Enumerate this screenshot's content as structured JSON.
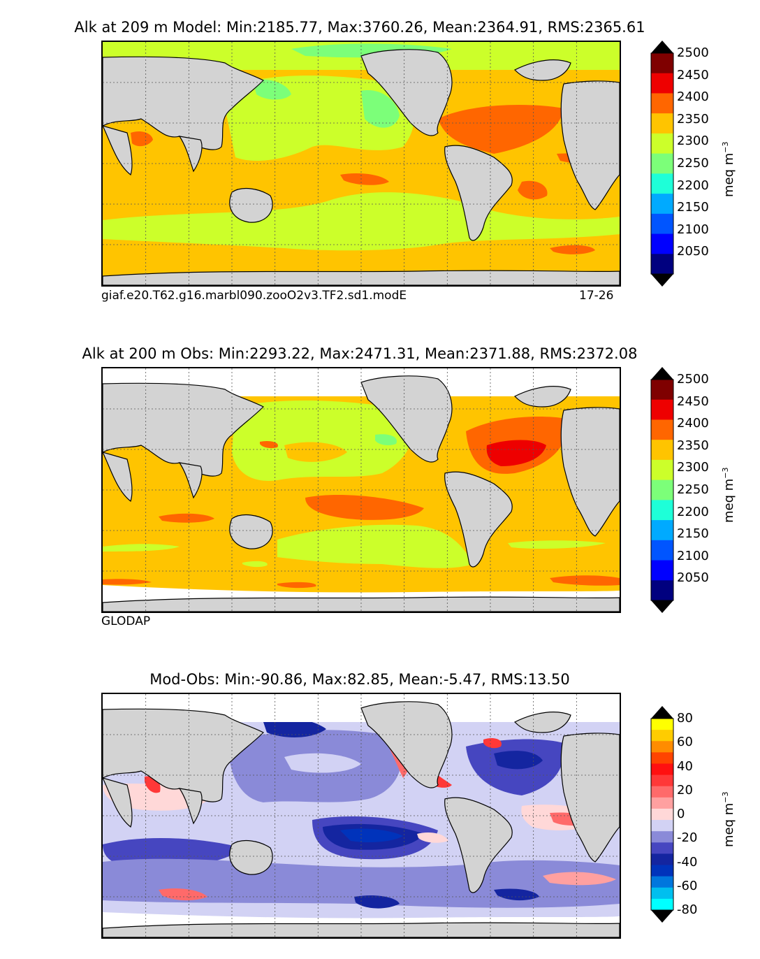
{
  "chart_data": [
    {
      "type": "heatmap",
      "title": "Alk at 209 m Model: Min:2185.77, Max:3760.26, Mean:2364.91, RMS:2365.61",
      "variable": "Alk",
      "depth": "209 m",
      "source": "Model",
      "stats": {
        "min": 2185.77,
        "max": 3760.26,
        "mean": 2364.91,
        "rms": 2365.61
      },
      "caption_left": "giaf.e20.T62.g16.marbl090.zooO2v3.TF2.sd1.modE",
      "caption_right": "17-26",
      "colorbar": {
        "label": "meq m",
        "label_exp": "−3",
        "ticks": [
          "2500",
          "2450",
          "2400",
          "2350",
          "2300",
          "2250",
          "2200",
          "2150",
          "2100",
          "2050"
        ],
        "levels": [
          2000,
          2050,
          2100,
          2150,
          2200,
          2250,
          2300,
          2350,
          2400,
          2450,
          2500
        ],
        "colors": [
          "#00007f",
          "#0000ff",
          "#0055ff",
          "#00aaff",
          "#1effd8",
          "#7cff79",
          "#ccff2a",
          "#ffc400",
          "#ff6600",
          "#ee0000",
          "#7f0000"
        ],
        "extend": "both"
      }
    },
    {
      "type": "heatmap",
      "title": "Alk at 200 m Obs: Min:2293.22, Max:2471.31, Mean:2371.88, RMS:2372.08",
      "variable": "Alk",
      "depth": "200 m",
      "source": "Obs",
      "stats": {
        "min": 2293.22,
        "max": 2471.31,
        "mean": 2371.88,
        "rms": 2372.08
      },
      "caption_left": "GLODAP",
      "colorbar": {
        "label": "meq m",
        "label_exp": "−3",
        "ticks": [
          "2500",
          "2450",
          "2400",
          "2350",
          "2300",
          "2250",
          "2200",
          "2150",
          "2100",
          "2050"
        ],
        "levels": [
          2000,
          2050,
          2100,
          2150,
          2200,
          2250,
          2300,
          2350,
          2400,
          2450,
          2500
        ],
        "colors": [
          "#00007f",
          "#0000ff",
          "#0055ff",
          "#00aaff",
          "#1effd8",
          "#7cff79",
          "#ccff2a",
          "#ffc400",
          "#ff6600",
          "#ee0000",
          "#7f0000"
        ],
        "extend": "both"
      }
    },
    {
      "type": "heatmap",
      "title": "Mod-Obs: Min:-90.86, Max:82.85, Mean:-5.47, RMS:13.50",
      "variable": "Mod-Obs",
      "stats": {
        "min": -90.86,
        "max": 82.85,
        "mean": -5.47,
        "rms": 13.5
      },
      "colorbar": {
        "label": "meq m",
        "label_exp": "−3",
        "ticks": [
          "80",
          "60",
          "40",
          "20",
          "0",
          "-20",
          "-40",
          "-60",
          "-80"
        ],
        "levels": [
          -80,
          -70,
          -60,
          -50,
          -40,
          -30,
          -20,
          -10,
          0,
          10,
          20,
          30,
          40,
          50,
          60,
          70,
          80
        ],
        "colors": [
          "#00ffff",
          "#00bfef",
          "#0077dd",
          "#0033bb",
          "#1425a0",
          "#4646c0",
          "#8a8ad8",
          "#d2d2f4",
          "#ffd8d8",
          "#ffa0a0",
          "#ff6a6a",
          "#ff3838",
          "#ff1010",
          "#ff4400",
          "#ff8c00",
          "#ffcc00",
          "#ffff00"
        ],
        "extend": "both"
      }
    }
  ]
}
